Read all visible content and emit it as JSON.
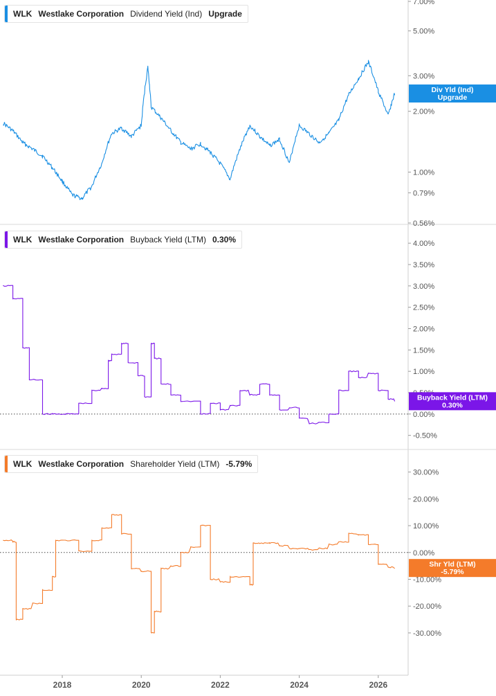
{
  "chart_data": [
    {
      "type": "line",
      "ticker": "WLK",
      "company": "Westlake Corporation",
      "metric": "Dividend Yield (Ind)",
      "legend_value": "Upgrade",
      "scale": "log",
      "color": "#1a8fe3",
      "y_ticks": [
        0.56,
        0.79,
        1.0,
        2.0,
        3.0,
        5.0,
        7.0
      ],
      "y_tick_labels": [
        "0.56%",
        "0.79%",
        "1.00%",
        "2.00%",
        "3.00%",
        "5.00%",
        "7.00%"
      ],
      "ylim": [
        0.56,
        7.0
      ],
      "badge": [
        "Div Yld (Ind)",
        "Upgrade"
      ],
      "badge_value": 2.45,
      "x": [
        "2016-07",
        "2016-10",
        "2017-01",
        "2017-04",
        "2017-07",
        "2017-10",
        "2018-01",
        "2018-04",
        "2018-07",
        "2018-10",
        "2019-01",
        "2019-04",
        "2019-07",
        "2019-10",
        "2020-01",
        "2020-03",
        "2020-04",
        "2020-07",
        "2020-10",
        "2021-01",
        "2021-04",
        "2021-07",
        "2021-10",
        "2022-01",
        "2022-04",
        "2022-07",
        "2022-10",
        "2023-01",
        "2023-04",
        "2023-07",
        "2023-10",
        "2024-01",
        "2024-04",
        "2024-07",
        "2024-10",
        "2025-01",
        "2025-04",
        "2025-07",
        "2025-10",
        "2026-01",
        "2026-04",
        "2026-06"
      ],
      "values": [
        1.75,
        1.6,
        1.4,
        1.3,
        1.2,
        1.05,
        0.9,
        0.77,
        0.74,
        0.85,
        1.1,
        1.55,
        1.65,
        1.5,
        1.7,
        3.3,
        2.1,
        1.85,
        1.6,
        1.4,
        1.3,
        1.38,
        1.25,
        1.1,
        0.92,
        1.3,
        1.7,
        1.5,
        1.35,
        1.45,
        1.1,
        1.7,
        1.55,
        1.4,
        1.55,
        1.8,
        2.4,
        2.9,
        3.5,
        2.5,
        1.9,
        2.45
      ]
    },
    {
      "type": "line",
      "ticker": "WLK",
      "company": "Westlake Corporation",
      "metric": "Buyback Yield (LTM)",
      "legend_value": "0.30%",
      "step": true,
      "color": "#7b16e8",
      "y_ticks": [
        -0.5,
        0.0,
        0.5,
        1.0,
        1.5,
        2.0,
        2.5,
        3.0,
        3.5,
        4.0
      ],
      "y_tick_labels": [
        "-0.50%",
        "0.00%",
        "0.50%",
        "1.00%",
        "1.50%",
        "2.00%",
        "2.50%",
        "3.00%",
        "3.50%",
        "4.00%"
      ],
      "ylim": [
        -0.7,
        4.1
      ],
      "zero_line": true,
      "badge": [
        "Buyback Yield (LTM)",
        "0.30%"
      ],
      "badge_value": 0.3,
      "x": [
        "2016-07",
        "2016-10",
        "2017-01",
        "2017-03",
        "2017-07",
        "2017-10",
        "2018-02",
        "2018-06",
        "2018-10",
        "2019-01",
        "2019-03",
        "2019-04",
        "2019-07",
        "2019-09",
        "2019-12",
        "2020-02",
        "2020-04",
        "2020-05",
        "2020-07",
        "2020-10",
        "2021-01",
        "2021-07",
        "2021-10",
        "2022-01",
        "2022-04",
        "2022-07",
        "2022-10",
        "2023-01",
        "2023-04",
        "2023-07",
        "2023-10",
        "2024-01",
        "2024-04",
        "2024-07",
        "2024-10",
        "2025-01",
        "2025-04",
        "2025-07",
        "2025-10",
        "2026-01",
        "2026-04",
        "2026-06"
      ],
      "values": [
        3.0,
        2.7,
        1.55,
        0.8,
        0.0,
        0.0,
        0.0,
        0.25,
        0.55,
        0.6,
        1.25,
        1.4,
        1.65,
        1.2,
        0.9,
        0.4,
        1.65,
        1.3,
        0.7,
        0.45,
        0.3,
        0.0,
        0.25,
        0.1,
        0.2,
        0.55,
        0.45,
        0.7,
        0.45,
        0.1,
        0.15,
        -0.1,
        -0.22,
        -0.2,
        0.0,
        0.55,
        1.0,
        0.85,
        0.95,
        0.55,
        0.35,
        0.3
      ]
    },
    {
      "type": "line",
      "ticker": "WLK",
      "company": "Westlake Corporation",
      "metric": "Shareholder Yield (LTM)",
      "legend_value": "-5.79%",
      "step": true,
      "color": "#f47b2a",
      "y_ticks": [
        -30,
        -20,
        -10,
        0,
        10,
        20,
        30
      ],
      "y_tick_labels": [
        "-30.00%",
        "-20.00%",
        "-10.00%",
        "0.00%",
        "10.00%",
        "20.00%",
        "30.00%"
      ],
      "ylim": [
        -37,
        33
      ],
      "zero_line": true,
      "badge": [
        "Shr Yld (LTM)",
        "-5.79%"
      ],
      "badge_value": -5.79,
      "x": [
        "2016-07",
        "2016-10",
        "2016-11",
        "2017-01",
        "2017-04",
        "2017-07",
        "2017-10",
        "2017-11",
        "2018-02",
        "2018-06",
        "2018-10",
        "2019-01",
        "2019-04",
        "2019-07",
        "2019-10",
        "2020-01",
        "2020-04",
        "2020-05",
        "2020-07",
        "2020-10",
        "2021-01",
        "2021-04",
        "2021-07",
        "2021-10",
        "2022-01",
        "2022-04",
        "2022-07",
        "2022-10",
        "2022-11",
        "2023-01",
        "2023-04",
        "2023-07",
        "2023-10",
        "2024-01",
        "2024-04",
        "2024-07",
        "2024-10",
        "2025-01",
        "2025-04",
        "2025-07",
        "2025-10",
        "2026-01",
        "2026-04",
        "2026-06"
      ],
      "values": [
        4.5,
        4.0,
        -25,
        -21,
        -19,
        -14,
        -9,
        4.5,
        4.5,
        0.5,
        4.5,
        9,
        14,
        7,
        -6,
        -7,
        -30,
        -22,
        -6,
        -5,
        0,
        2,
        10,
        -10,
        -11,
        -9,
        -9,
        -12,
        3.5,
        3.5,
        3.5,
        2.5,
        1.5,
        1.5,
        1.0,
        1.5,
        3,
        4,
        7,
        6.5,
        3,
        -4.5,
        -5.5,
        -5.79
      ]
    }
  ],
  "x_axis": {
    "labels": [
      "2018",
      "2020",
      "2022",
      "2024",
      "2026"
    ],
    "label_dates": [
      "2018-01",
      "2020-01",
      "2022-01",
      "2024-01",
      "2026-01"
    ]
  }
}
